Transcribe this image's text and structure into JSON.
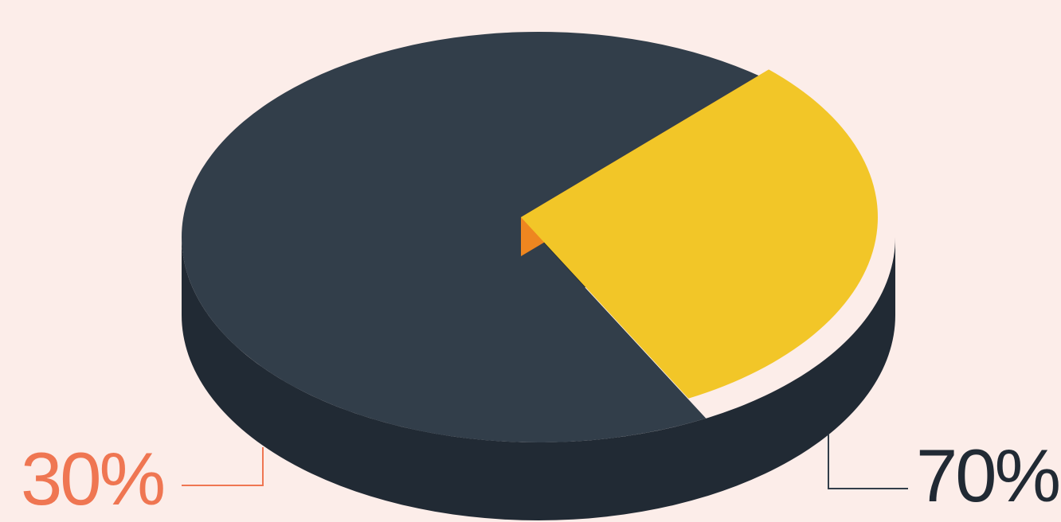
{
  "chart_data": {
    "type": "pie",
    "style": "3d",
    "slices": [
      {
        "label": "70%",
        "value": 70,
        "color": "#323e4a",
        "side_color": "#212a34"
      },
      {
        "label": "30%",
        "value": 30,
        "color": "#f2c628",
        "side_color": "#ef7652"
      }
    ]
  }
}
